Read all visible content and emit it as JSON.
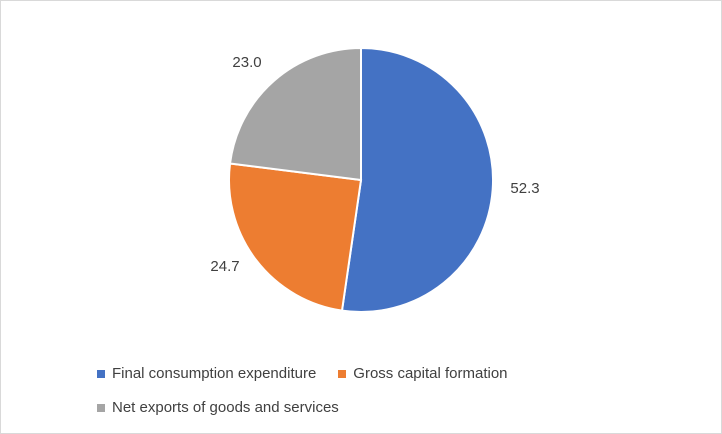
{
  "chart_data": {
    "type": "pie",
    "categories": [
      "Final consumption expenditure",
      "Gross capital formation",
      "Net exports of goods and services"
    ],
    "values": [
      52.3,
      24.7,
      23.0
    ],
    "value_labels": [
      "52.3",
      "24.7",
      "23.0"
    ],
    "colors": [
      "#4472c4",
      "#ed7d31",
      "#a5a5a5"
    ],
    "start_angle_deg": 0,
    "direction": "clockwise",
    "legend_position": "bottom"
  }
}
